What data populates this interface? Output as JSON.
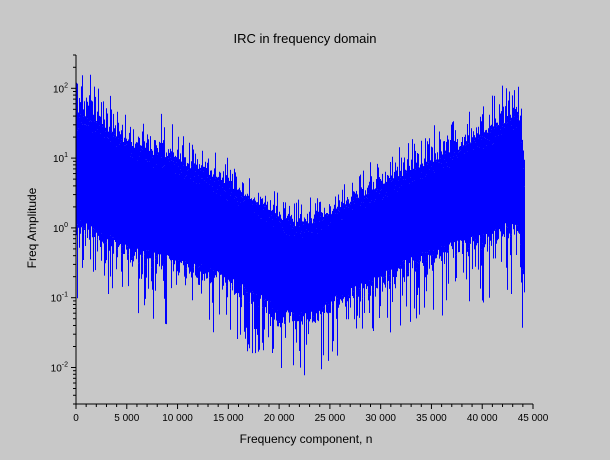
{
  "chart_data": {
    "type": "line",
    "title": "IRC in frequency domain",
    "xlabel": "Frequency component, n",
    "ylabel": "Freq Amplitude",
    "xlim": [
      0,
      45000
    ],
    "ylim": [
      0.003,
      300
    ],
    "y_scale": "log",
    "grid": false,
    "line_color": "#0000ff",
    "x_ticks": [
      {
        "value": 0,
        "label": "0"
      },
      {
        "value": 5000,
        "label": "5 000"
      },
      {
        "value": 10000,
        "label": "10 000"
      },
      {
        "value": 15000,
        "label": "15 000"
      },
      {
        "value": 20000,
        "label": "20 000"
      },
      {
        "value": 25000,
        "label": "25 000"
      },
      {
        "value": 30000,
        "label": "30 000"
      },
      {
        "value": 35000,
        "label": "35 000"
      },
      {
        "value": 40000,
        "label": "40 000"
      },
      {
        "value": 45000,
        "label": "45 000"
      }
    ],
    "y_ticks": [
      {
        "value": 100,
        "base": "10",
        "exp": "2"
      },
      {
        "value": 10,
        "base": "10",
        "exp": "1"
      },
      {
        "value": 1,
        "base": "10",
        "exp": "0"
      },
      {
        "value": 0.1,
        "base": "10",
        "exp": "-1"
      },
      {
        "value": 0.01,
        "base": "10",
        "exp": "-2"
      }
    ],
    "series": [
      {
        "x": [
          0,
          500,
          1000,
          2000,
          3000,
          4000,
          5000,
          7000,
          9000,
          11000,
          13000,
          15000,
          17000,
          19000,
          20000,
          21000,
          22000,
          23000,
          24000,
          25000,
          27000,
          29000,
          31000,
          33000,
          35000,
          37000,
          39000,
          41000,
          42000,
          43000,
          43500,
          44000,
          44100
        ],
        "y_max": [
          200,
          240,
          230,
          160,
          110,
          90,
          60,
          50,
          40,
          28,
          18,
          12,
          8,
          5,
          3.6,
          3,
          2.8,
          3,
          3.2,
          4,
          6,
          9,
          14,
          22,
          30,
          42,
          58,
          90,
          130,
          230,
          250,
          30,
          20
        ],
        "y_envelope": [
          30,
          38,
          36,
          28,
          22,
          18,
          15,
          11,
          9,
          7,
          5,
          3.4,
          2.4,
          1.6,
          1.2,
          1.1,
          1.0,
          1.1,
          1.2,
          1.5,
          2.2,
          3,
          4.2,
          6,
          8,
          11,
          15,
          22,
          28,
          36,
          38,
          8,
          5
        ],
        "y_dense_min": [
          0.8,
          1.0,
          0.9,
          0.7,
          0.6,
          0.5,
          0.4,
          0.35,
          0.3,
          0.25,
          0.2,
          0.15,
          0.1,
          0.07,
          0.05,
          0.05,
          0.045,
          0.05,
          0.055,
          0.07,
          0.1,
          0.14,
          0.2,
          0.28,
          0.35,
          0.45,
          0.55,
          0.7,
          0.8,
          1.0,
          1.0,
          0.2,
          0.1
        ],
        "y_min": [
          0.03,
          0.2,
          0.15,
          0.1,
          0.1,
          0.08,
          0.06,
          0.05,
          0.04,
          0.035,
          0.025,
          0.02,
          0.015,
          0.012,
          0.01,
          0.008,
          0.007,
          0.008,
          0.009,
          0.012,
          0.018,
          0.025,
          0.03,
          0.04,
          0.05,
          0.06,
          0.07,
          0.08,
          0.09,
          0.1,
          0.1,
          0.03,
          0.03
        ]
      }
    ]
  }
}
